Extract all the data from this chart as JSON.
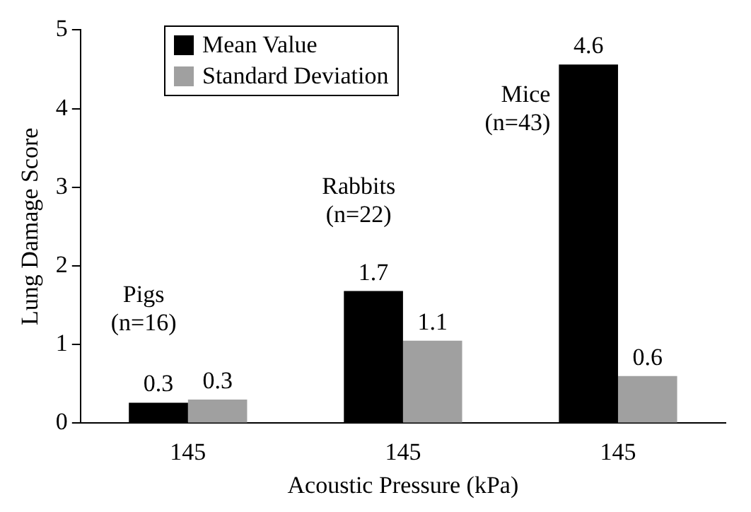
{
  "chart_data": {
    "type": "bar",
    "xlabel": "Acoustic Pressure (kPa)",
    "ylabel": "Lung Damage Score",
    "categories": [
      "145",
      "145",
      "145"
    ],
    "series": [
      {
        "name": "Mean Value",
        "color": "#000000",
        "values": [
          0.26,
          1.68,
          4.56
        ],
        "value_labels": [
          "0.3",
          "1.7",
          "4.6"
        ]
      },
      {
        "name": "Standard Deviation",
        "color": "#a0a0a0",
        "values": [
          0.3,
          1.05,
          0.6
        ],
        "value_labels": [
          "0.3",
          "1.1",
          "0.6"
        ]
      }
    ],
    "annotations": [
      "Pigs (n=16)",
      "Rabbits (n=22)",
      "Mice (n=43)"
    ],
    "ylim": [
      0,
      5
    ],
    "yticks": [
      0,
      1,
      2,
      3,
      4,
      5
    ],
    "grid": false,
    "legend": "top left"
  }
}
